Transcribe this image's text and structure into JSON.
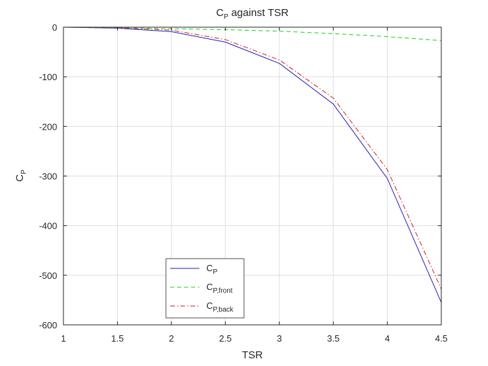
{
  "chart_data": {
    "type": "line",
    "title": {
      "main": "C",
      "sub": "P",
      "rest": " against TSR"
    },
    "xlabel": "TSR",
    "ylabel": {
      "main": "C",
      "sub": "P"
    },
    "xlim": [
      1,
      4.5
    ],
    "ylim": [
      -600,
      0
    ],
    "xticks": [
      1,
      1.5,
      2,
      2.5,
      3,
      3.5,
      4,
      4.5
    ],
    "xtick_labels": [
      "1",
      "1.5",
      "2",
      "2.5",
      "3",
      "3.5",
      "4",
      "4.5"
    ],
    "yticks": [
      0,
      -100,
      -200,
      -300,
      -400,
      -500,
      -600
    ],
    "ytick_labels": [
      "0",
      "-100",
      "-200",
      "-300",
      "-400",
      "-500",
      "-600"
    ],
    "grid": true,
    "legend_position": "bottom-center",
    "x": [
      1,
      1.5,
      2,
      2.5,
      3,
      3.5,
      4,
      4.5
    ],
    "series": [
      {
        "key": "cp",
        "legend_main": "C",
        "legend_sub": "P",
        "color": "#2121b8",
        "style": "solid",
        "values": [
          0,
          -2,
          -9,
          -30,
          -73,
          -155,
          -305,
          -555
        ]
      },
      {
        "key": "cp-front",
        "legend_main": "C",
        "legend_sub": "P,front",
        "color": "#22cc22",
        "style": "dashed",
        "values": [
          0,
          -1,
          -3,
          -5,
          -8,
          -13,
          -19,
          -27
        ]
      },
      {
        "key": "cp-back",
        "legend_main": "C",
        "legend_sub": "P,back",
        "color": "#cc2222",
        "style": "dashdot",
        "values": [
          0,
          -1,
          -6,
          -25,
          -66,
          -143,
          -287,
          -528
        ]
      }
    ]
  }
}
